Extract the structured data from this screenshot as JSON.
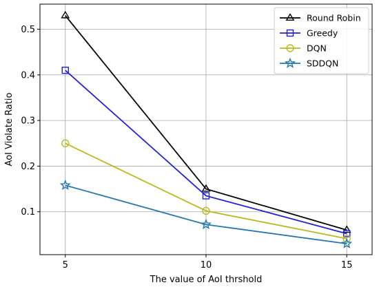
{
  "chart_data": {
    "type": "line",
    "title": "",
    "xlabel": "The value of AoI thrshold",
    "ylabel": "AoI Violate Ratio",
    "x": [
      5,
      10,
      15
    ],
    "xticks": [
      5,
      10,
      15
    ],
    "yticks": [
      0.1,
      0.2,
      0.3,
      0.4,
      0.5
    ],
    "xlim": [
      4.1,
      15.9
    ],
    "ylim": [
      0.006,
      0.555
    ],
    "grid": true,
    "legend_position": "top-right",
    "series": [
      {
        "name": "Round Robin",
        "values": [
          0.53,
          0.15,
          0.06
        ],
        "color": "#000000",
        "marker": "triangle"
      },
      {
        "name": "Greedy",
        "values": [
          0.41,
          0.135,
          0.052
        ],
        "color": "#1f1fdc",
        "marker": "square"
      },
      {
        "name": "DQN",
        "values": [
          0.25,
          0.102,
          0.041
        ],
        "color": "#bcb81a",
        "marker": "circle"
      },
      {
        "name": "SDDQN",
        "values": [
          0.158,
          0.072,
          0.03
        ],
        "color": "#2277b0",
        "marker": "star"
      }
    ]
  }
}
